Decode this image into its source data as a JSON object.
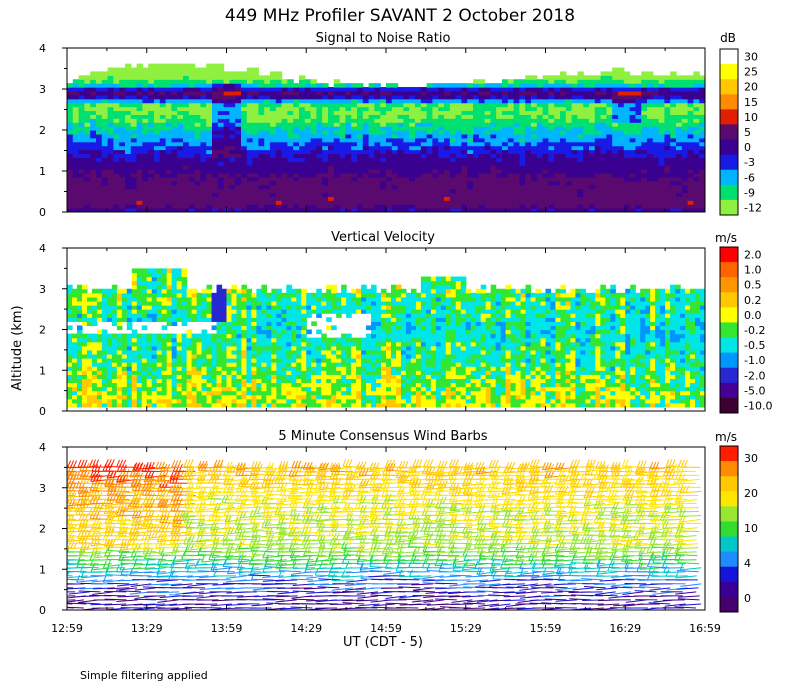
{
  "page": {
    "title": "449 MHz Profiler SAVANT  2 October 2018",
    "y_axis_label": "Altitude (km)",
    "x_axis_label": "UT  (CDT - 5)",
    "x_ticks": [
      "12:59",
      "13:29",
      "13:59",
      "14:29",
      "14:59",
      "15:29",
      "15:59",
      "16:29",
      "16:59"
    ],
    "y_ticks": [
      "0",
      "1",
      "2",
      "3",
      "4"
    ],
    "footnote": "Simple filtering applied"
  },
  "chart_data": [
    {
      "type": "heatmap",
      "title": "Signal to Noise Ratio",
      "unit": "dB",
      "xlim": [
        "12:59",
        "16:59"
      ],
      "ylim": [
        0,
        4
      ],
      "scale_labels": [
        "30",
        "25",
        "20",
        "15",
        "10",
        "5",
        "0",
        "-3",
        "-6",
        "-9",
        "-12"
      ],
      "scale_colors": [
        "#ffffff",
        "#ffff00",
        "#ffc800",
        "#ff8c00",
        "#e02000",
        "#5a0a6e",
        "#3a0090",
        "#1a1ae6",
        "#00b4ff",
        "#00e070",
        "#90f040"
      ],
      "profile": {
        "altitude_km": [
          0.0,
          0.2,
          0.5,
          0.8,
          1.1,
          1.4,
          1.7,
          2.0,
          2.3,
          2.6,
          2.9,
          3.1,
          3.3,
          3.5
        ],
        "snr_db": [
          -1,
          8,
          7,
          6,
          3,
          0,
          -3,
          -6,
          -9,
          -10,
          5,
          -6,
          -11,
          -12
        ]
      }
    },
    {
      "type": "heatmap",
      "title": "Vertical Velocity",
      "unit": "m/s",
      "xlim": [
        "12:59",
        "16:59"
      ],
      "ylim": [
        0,
        4
      ],
      "scale_labels": [
        "2.0",
        "1.0",
        "0.5",
        "0.2",
        "0.0",
        "-0.2",
        "-0.5",
        "-1.0",
        "-2.0",
        "-5.0",
        "-10.0"
      ],
      "scale_colors": [
        "#ff0000",
        "#ff6400",
        "#ff9600",
        "#ffc800",
        "#ffff00",
        "#32e632",
        "#00e6e6",
        "#0096ff",
        "#2828d2",
        "#460096",
        "#3c0032"
      ],
      "profile": {
        "altitude_km": [
          0.2,
          0.6,
          1.0,
          1.5,
          2.0,
          2.5,
          3.0
        ],
        "velocity_ms": [
          0.05,
          0.0,
          -0.1,
          -0.2,
          -0.3,
          -0.2,
          -0.1
        ]
      }
    },
    {
      "type": "scatter",
      "title": "5 Minute Consensus Wind Barbs",
      "unit": "m/s",
      "xlim": [
        "12:59",
        "16:59"
      ],
      "ylim": [
        0,
        4
      ],
      "scale_labels": [
        "30",
        "20",
        "10",
        "4",
        "0"
      ],
      "scale_colors": [
        "#ff1e00",
        "#ff8c00",
        "#ffc800",
        "#ffe600",
        "#96e632",
        "#32dc32",
        "#00c8c8",
        "#1e8cff",
        "#1414dc",
        "#3a0096",
        "#46006e"
      ],
      "profile": {
        "altitude_km": [
          0.2,
          0.6,
          1.0,
          1.5,
          2.0,
          2.5,
          3.0,
          3.5
        ],
        "speed_ms": [
          3,
          5,
          10,
          18,
          20,
          21,
          23,
          26
        ]
      }
    }
  ]
}
